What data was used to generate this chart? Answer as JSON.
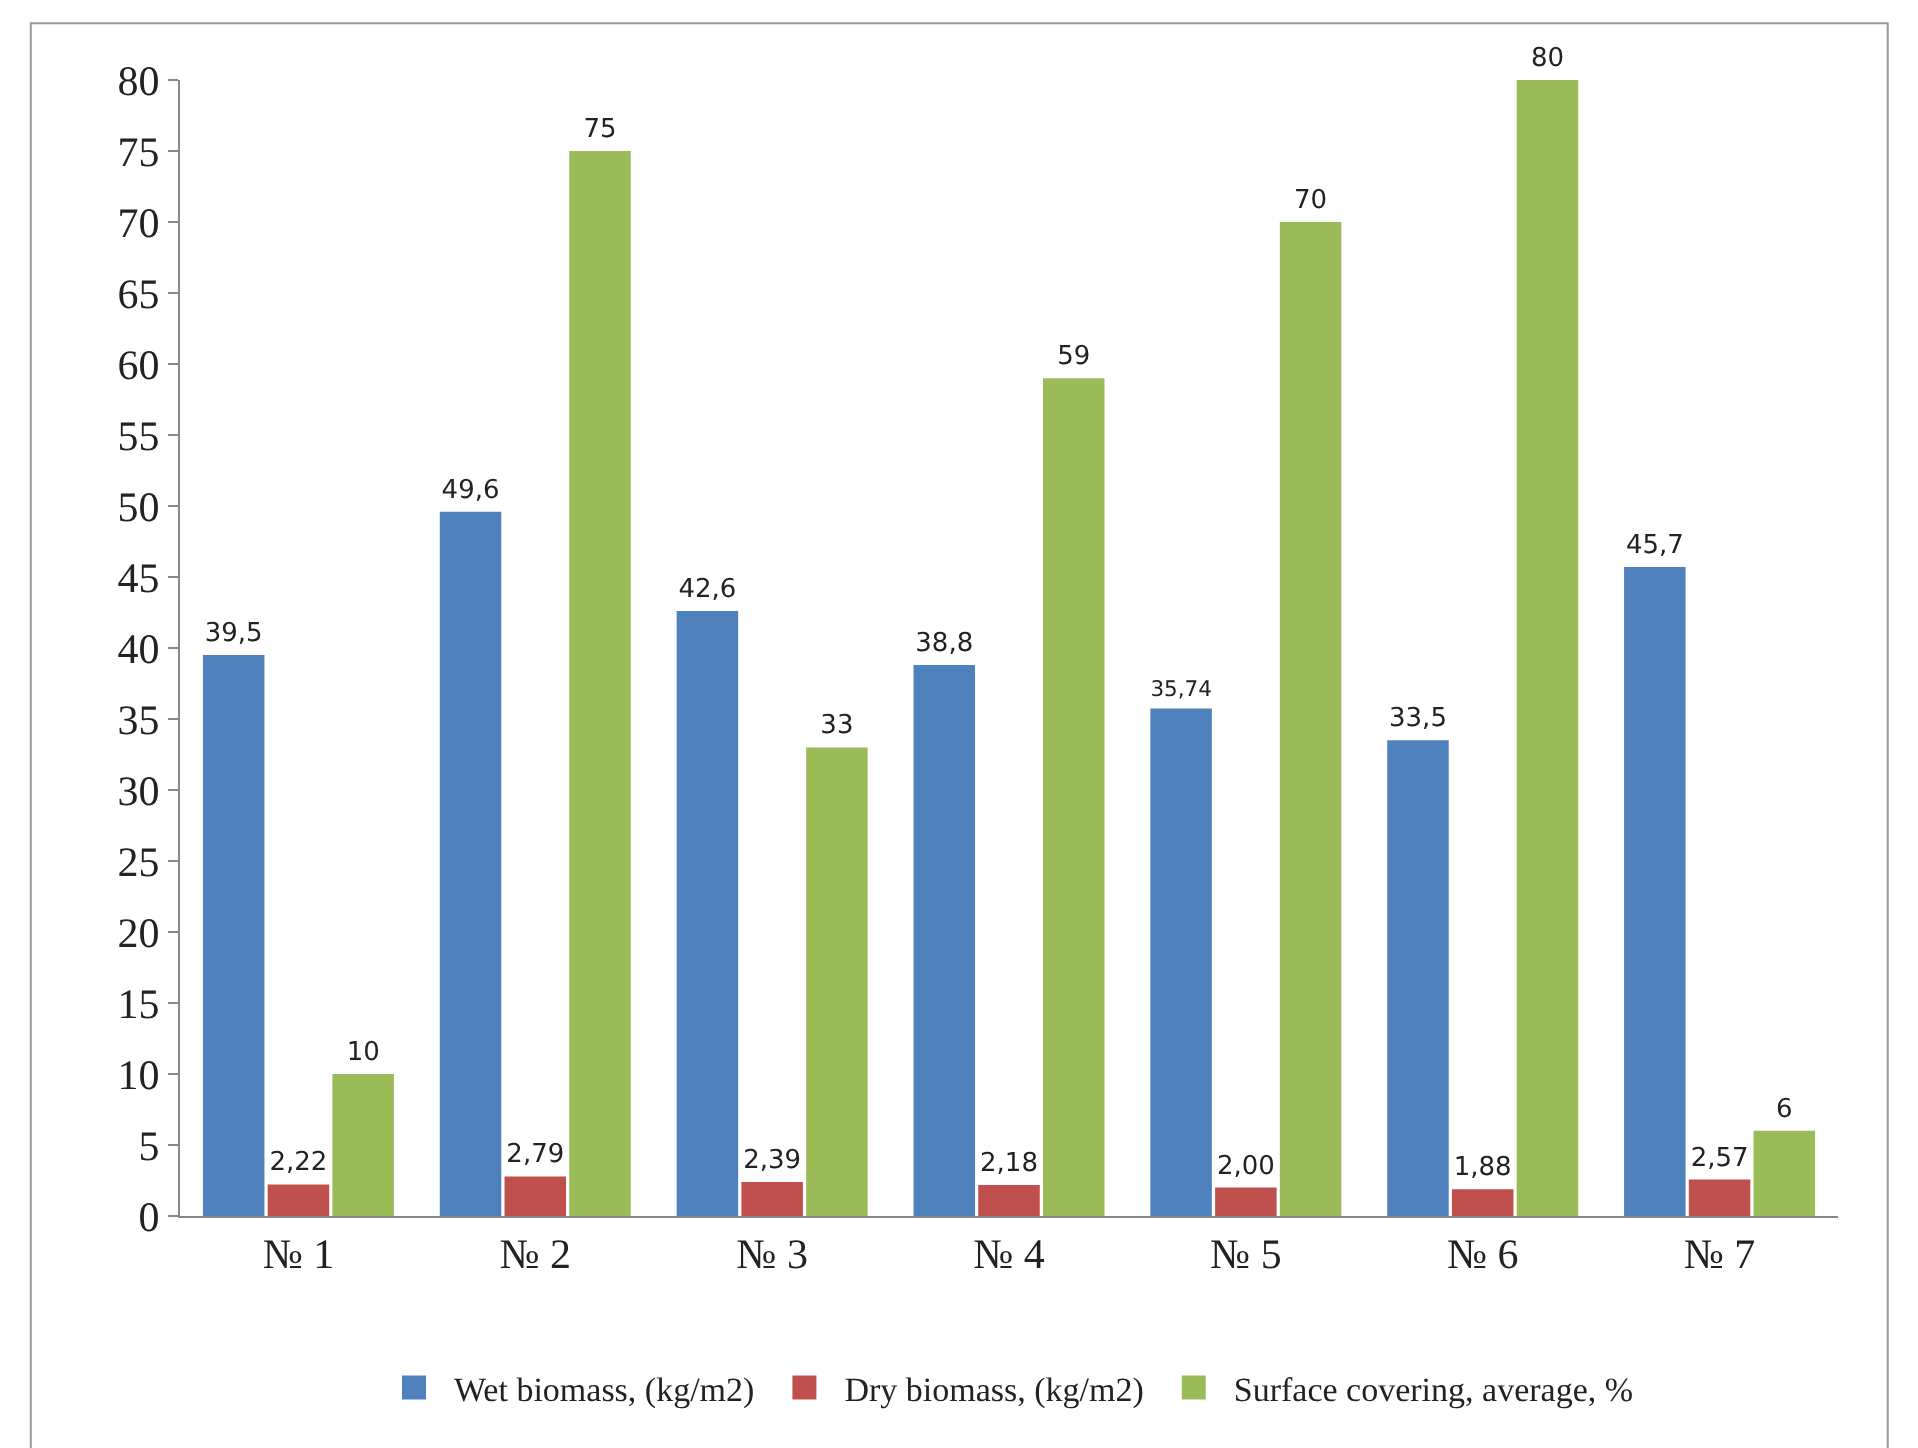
{
  "chart_data": {
    "type": "bar",
    "categories": [
      "№ 1",
      "№ 2",
      "№ 3",
      "№ 4",
      "№ 5",
      "№ 6",
      "№ 7"
    ],
    "series": [
      {
        "name": "Wet biomass, (kg/m2)",
        "color": "#4f81bd",
        "values": [
          39.5,
          49.6,
          42.6,
          38.8,
          35.74,
          33.5,
          45.7
        ],
        "value_labels": [
          "39,5",
          "49,6",
          "42,6",
          "38,8",
          "35,74",
          "33,5",
          "45,7"
        ]
      },
      {
        "name": "Dry biomass, (kg/m2)",
        "color": "#c0504d",
        "values": [
          2.22,
          2.79,
          2.39,
          2.18,
          2.0,
          1.88,
          2.57
        ],
        "value_labels": [
          "2,22",
          "2,79",
          "2,39",
          "2,18",
          "2,00",
          "1,88",
          "2,57"
        ]
      },
      {
        "name": "Surface covering, average, %",
        "color": "#9bbb59",
        "values": [
          10,
          75,
          33,
          59,
          70,
          80,
          6
        ],
        "value_labels": [
          "10",
          "75",
          "33",
          "59",
          "70",
          "80",
          "6"
        ]
      }
    ],
    "ylim": [
      0,
      80
    ],
    "yticks": [
      0,
      5,
      10,
      15,
      20,
      25,
      30,
      35,
      40,
      45,
      50,
      55,
      60,
      65,
      70,
      75,
      80
    ],
    "grid": false,
    "legend": "bottom"
  }
}
